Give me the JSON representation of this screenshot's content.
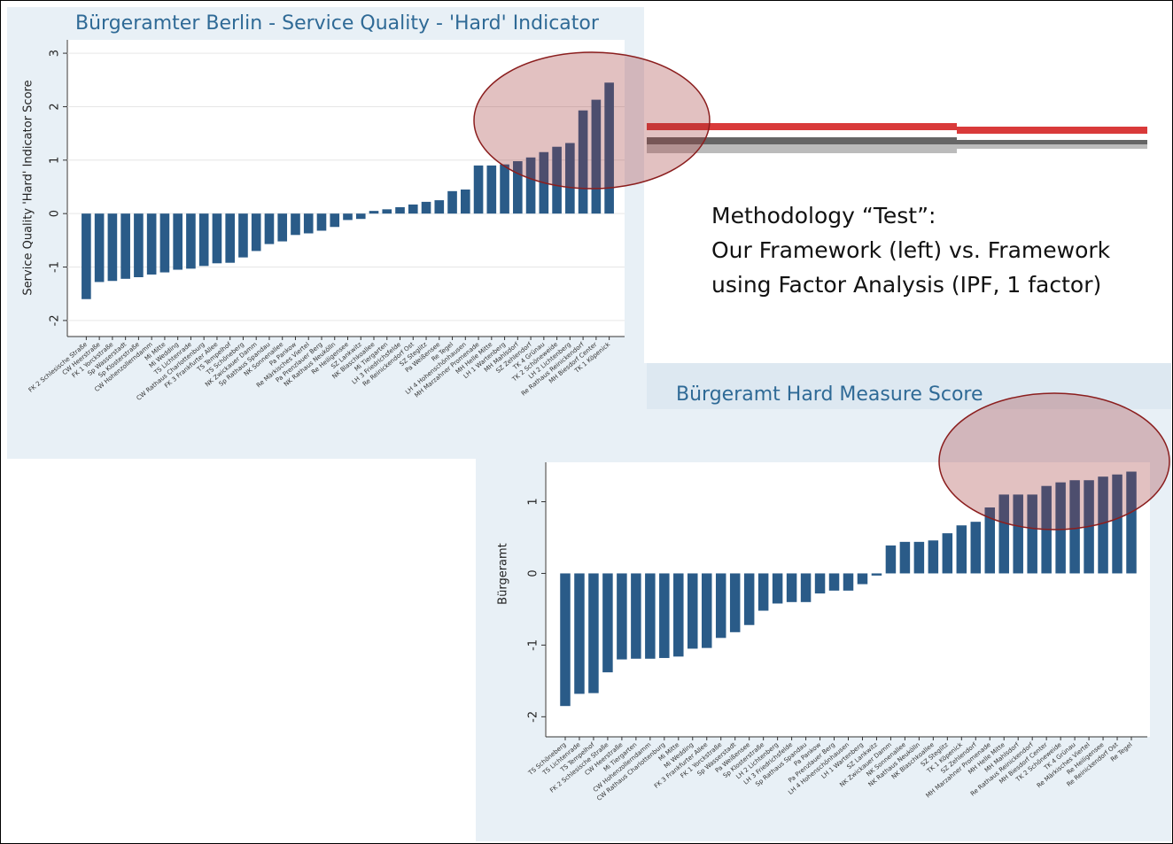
{
  "chart_data": [
    {
      "type": "bar",
      "title": "Bürgeramter Berlin - Service Quality - 'Hard' Indicator",
      "y_label": "Service Quality 'Hard' Indicator Score",
      "categories": [
        "FK 2 Schlesische Straße",
        "CW Heerstraße",
        "FK 1 Yorckstraße",
        "Sp Wasserstadt",
        "Sp Klosterstraße",
        "CW Hohenzollerndamm",
        "Mi Mitte",
        "Mi Wedding",
        "TS Lichtenrade",
        "CW Rathaus Charlottenburg",
        "FK 3 Frankfurter Allee",
        "TS Tempelhof",
        "TS Schöneberg",
        "NK Zwickauer Damm",
        "Sp Rathaus Spandau",
        "NK Sonnenallee",
        "Pa Pankow",
        "Re Märkisches Viertel",
        "Pa Prenzlauer Berg",
        "NK Rathaus Neukölln",
        "Re Heiligensee",
        "SZ Lankwitz",
        "NK Blaschkoallee",
        "Mi Tiergarten",
        "LH 3 Friedrichsfelde",
        "Re Reinickendorf Ost",
        "SZ Steglitz",
        "Pa Weißensee",
        "Re Tegel",
        "LH 4 Hohenschönhausen",
        "MH Marzahner Promenade",
        "MH Helle Mitte",
        "LH 1 Wartenberg",
        "MH Mahlsdorf",
        "SZ Zehlendorf",
        "TK 4 Grünau",
        "TK 2 Schöneweide",
        "LH 2 Lichtenberg",
        "Re Rathaus Reinickendorf",
        "MH Biesdorf Center",
        "TK 1 Köpenick"
      ],
      "values": [
        -1.6,
        -1.28,
        -1.26,
        -1.22,
        -1.19,
        -1.14,
        -1.1,
        -1.05,
        -1.03,
        -0.98,
        -0.93,
        -0.92,
        -0.82,
        -0.7,
        -0.57,
        -0.52,
        -0.4,
        -0.37,
        -0.32,
        -0.25,
        -0.12,
        -0.1,
        0.05,
        0.08,
        0.12,
        0.17,
        0.22,
        0.25,
        0.42,
        0.45,
        0.9,
        0.9,
        0.92,
        0.98,
        1.05,
        1.15,
        1.25,
        1.32,
        1.93,
        2.13,
        2.45
      ],
      "color": "#2a5b88",
      "ylim": [
        -2.3,
        3.25
      ],
      "yticks": [
        -2,
        -1,
        0,
        1,
        2,
        3
      ],
      "grid": true
    },
    {
      "type": "bar",
      "title": "Bürgeramt Hard Measure Score",
      "y_label": "Bürgeramt",
      "categories": [
        "TS Schöneberg",
        "TS Lichtenrade",
        "TS Tempelhof",
        "FK 2 Schlesische Straße",
        "CW Heerstraße",
        "Mi Tiergarten",
        "CW Hohenzollerndamm",
        "CW Rathaus Charlottenburg",
        "Mi Mitte",
        "Mi Wedding",
        "FK 3 Frankfurter Allee",
        "FK 1 Yorckstraße",
        "Sp Wasserstadt",
        "Pa Weißensee",
        "Sp Klosterstraße",
        "LH 2 Lichtenberg",
        "LH 3 Friedrichsfelde",
        "Sp Rathaus Spandau",
        "Pa Pankow",
        "Pa Prenzlauer Berg",
        "LH 4 Hohenschönhausen",
        "LH 1 Wartenberg",
        "SZ Lankwitz",
        "NK Zwickauer Damm",
        "NK Sonnenallee",
        "NK Rathaus Neukölln",
        "NK Blaschkoallee",
        "SZ Steglitz",
        "TK 1 Köpenick",
        "SZ Zehlendorf",
        "MH Marzahner Promenade",
        "MH Helle Mitte",
        "MH Mahlsdorf",
        "Re Rathaus Reinickendorf",
        "MH Biesdorf Center",
        "TK 2 Schöneweide",
        "TK 4 Grünau",
        "Re Märkisches Viertel",
        "Re Heiligensee",
        "Re Reinickendorf Ost",
        "Re Tegel"
      ],
      "values": [
        -1.85,
        -1.68,
        -1.67,
        -1.38,
        -1.2,
        -1.19,
        -1.19,
        -1.18,
        -1.16,
        -1.05,
        -1.04,
        -0.9,
        -0.82,
        -0.72,
        -0.52,
        -0.42,
        -0.4,
        -0.4,
        -0.28,
        -0.24,
        -0.24,
        -0.15,
        -0.03,
        0.39,
        0.44,
        0.44,
        0.46,
        0.56,
        0.67,
        0.72,
        0.92,
        1.1,
        1.1,
        1.1,
        1.22,
        1.27,
        1.3,
        1.3,
        1.35,
        1.38,
        1.42
      ],
      "color": "#2a5b88",
      "ylim": [
        -2.28,
        1.55
      ],
      "yticks": [
        -2,
        -1,
        0,
        1
      ],
      "grid": false
    }
  ],
  "slide": {
    "text": [
      "Methodology “Test”:",
      "Our Framework (left) vs. Framework",
      "using Factor Analysis (IPF, 1 factor)"
    ]
  }
}
